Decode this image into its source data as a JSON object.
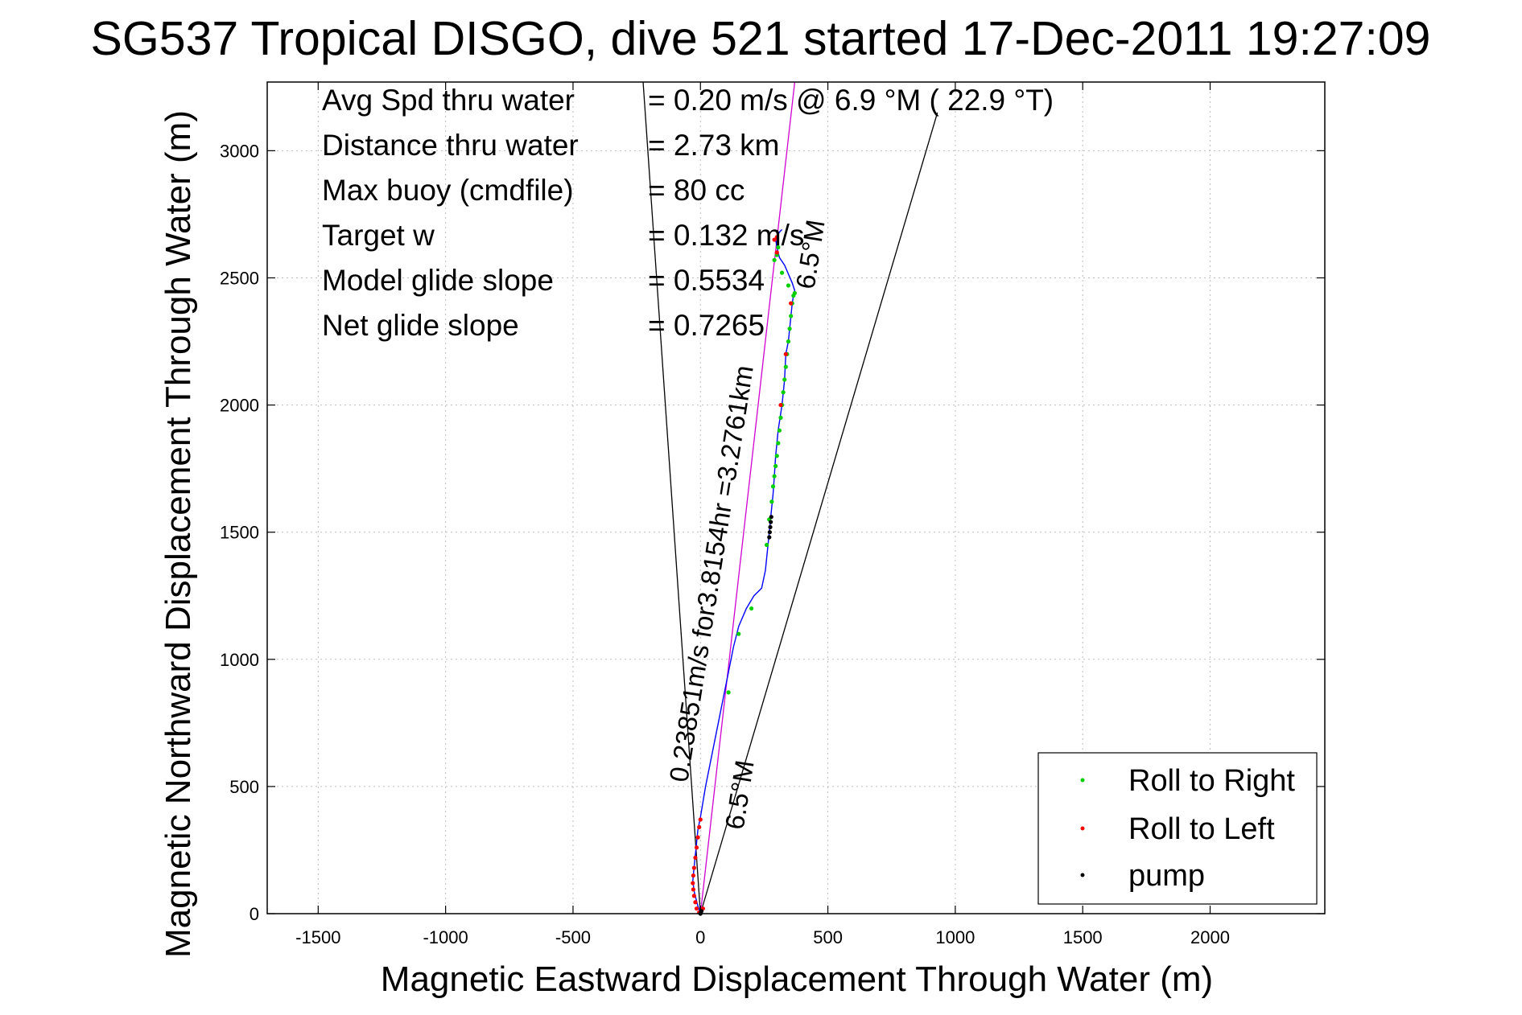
{
  "chart_data": {
    "type": "scatter",
    "title": "SG537 Tropical DISGO, dive 521 started 17-Dec-2011 19:27:09",
    "xlabel": "Magnetic Eastward Displacement Through Water (m)",
    "ylabel": "Magnetic Northward Displacement Through Water (m)",
    "xlim": [
      -1700,
      2450
    ],
    "ylim": [
      0,
      3270
    ],
    "xticks": [
      -1500,
      -1000,
      -500,
      0,
      500,
      1000,
      1500,
      2000
    ],
    "yticks": [
      0,
      500,
      1000,
      1500,
      2000,
      2500,
      3000
    ],
    "grid": true,
    "info_lines": [
      {
        "label": "Avg Spd thru water",
        "value": "=  0.20 m/s @   6.9 °M ( 22.9 °T)"
      },
      {
        "label": "Distance thru water",
        "value": "=  2.73 km"
      },
      {
        "label": "Max buoy (cmdfile)",
        "value": "= 80 cc"
      },
      {
        "label": "Target w",
        "value": "= 0.132 m/s"
      },
      {
        "label": "Model glide slope",
        "value": "= 0.5534"
      },
      {
        "label": "Net glide slope",
        "value": "= 0.7265"
      }
    ],
    "annotations": {
      "course_label": "0.23851m/s for3.8154hr =3.2761km",
      "heading_low": "6.5°M",
      "heading_high": "6.5°M"
    },
    "reference_lines": [
      {
        "name": "Target heading",
        "color": "#d000d0",
        "x": [
          0,
          370
        ],
        "y": [
          0,
          3270
        ]
      },
      {
        "name": "",
        "color": "#000000",
        "x": [
          0,
          -225
        ],
        "y": [
          0,
          3270
        ]
      },
      {
        "name": "",
        "color": "#000000",
        "x": [
          0,
          930
        ],
        "y": [
          0,
          3150
        ]
      }
    ],
    "track": {
      "color": "#0000ff",
      "x": [
        0,
        -10,
        -18,
        -25,
        -30,
        -25,
        -20,
        -15,
        -10,
        0,
        20,
        50,
        80,
        110,
        130,
        150,
        180,
        210,
        240,
        255,
        265,
        275,
        285,
        290,
        295,
        305,
        320,
        330,
        335,
        345,
        350,
        355,
        360,
        365,
        370,
        360,
        330,
        310,
        300,
        295,
        305,
        310,
        320
      ],
      "y": [
        0,
        30,
        60,
        90,
        130,
        180,
        230,
        280,
        330,
        380,
        500,
        650,
        800,
        950,
        1050,
        1130,
        1200,
        1250,
        1280,
        1350,
        1450,
        1550,
        1650,
        1720,
        1800,
        1900,
        2000,
        2100,
        2200,
        2250,
        2300,
        2350,
        2400,
        2430,
        2450,
        2480,
        2550,
        2580,
        2620,
        2650,
        2670,
        2680,
        2690
      ]
    },
    "series": [
      {
        "name": "Roll to Right",
        "color": "#00d000",
        "x": [
          260,
          270,
          280,
          285,
          290,
          295,
          300,
          305,
          310,
          315,
          320,
          325,
          330,
          335,
          340,
          345,
          350,
          355,
          360,
          365,
          370,
          345,
          320,
          290,
          300,
          305,
          200,
          150,
          110
        ],
        "y": [
          1450,
          1550,
          1620,
          1680,
          1720,
          1760,
          1800,
          1850,
          1900,
          1950,
          2000,
          2050,
          2100,
          2150,
          2200,
          2250,
          2300,
          2350,
          2400,
          2430,
          2440,
          2470,
          2520,
          2570,
          2590,
          2620,
          1200,
          1100,
          870
        ]
      },
      {
        "name": "Roll to Left",
        "color": "#ff0000",
        "x": [
          -5,
          -15,
          -20,
          -25,
          -28,
          -30,
          -28,
          -25,
          -20,
          -15,
          -10,
          -5,
          0,
          10,
          300,
          290,
          315,
          335,
          355,
          300
        ],
        "y": [
          5,
          20,
          45,
          70,
          95,
          120,
          150,
          180,
          220,
          260,
          300,
          340,
          370,
          20,
          2600,
          2650,
          2000,
          2200,
          2400,
          2660
        ]
      },
      {
        "name": "pump",
        "color": "#000000",
        "x": [
          270,
          272,
          274,
          276,
          278,
          0,
          2,
          4
        ],
        "y": [
          1480,
          1500,
          1520,
          1540,
          1560,
          0,
          5,
          10
        ]
      }
    ],
    "legend": {
      "position": "bottom-right",
      "entries": [
        "Roll to Right",
        "Roll to Left",
        "pump"
      ]
    }
  }
}
